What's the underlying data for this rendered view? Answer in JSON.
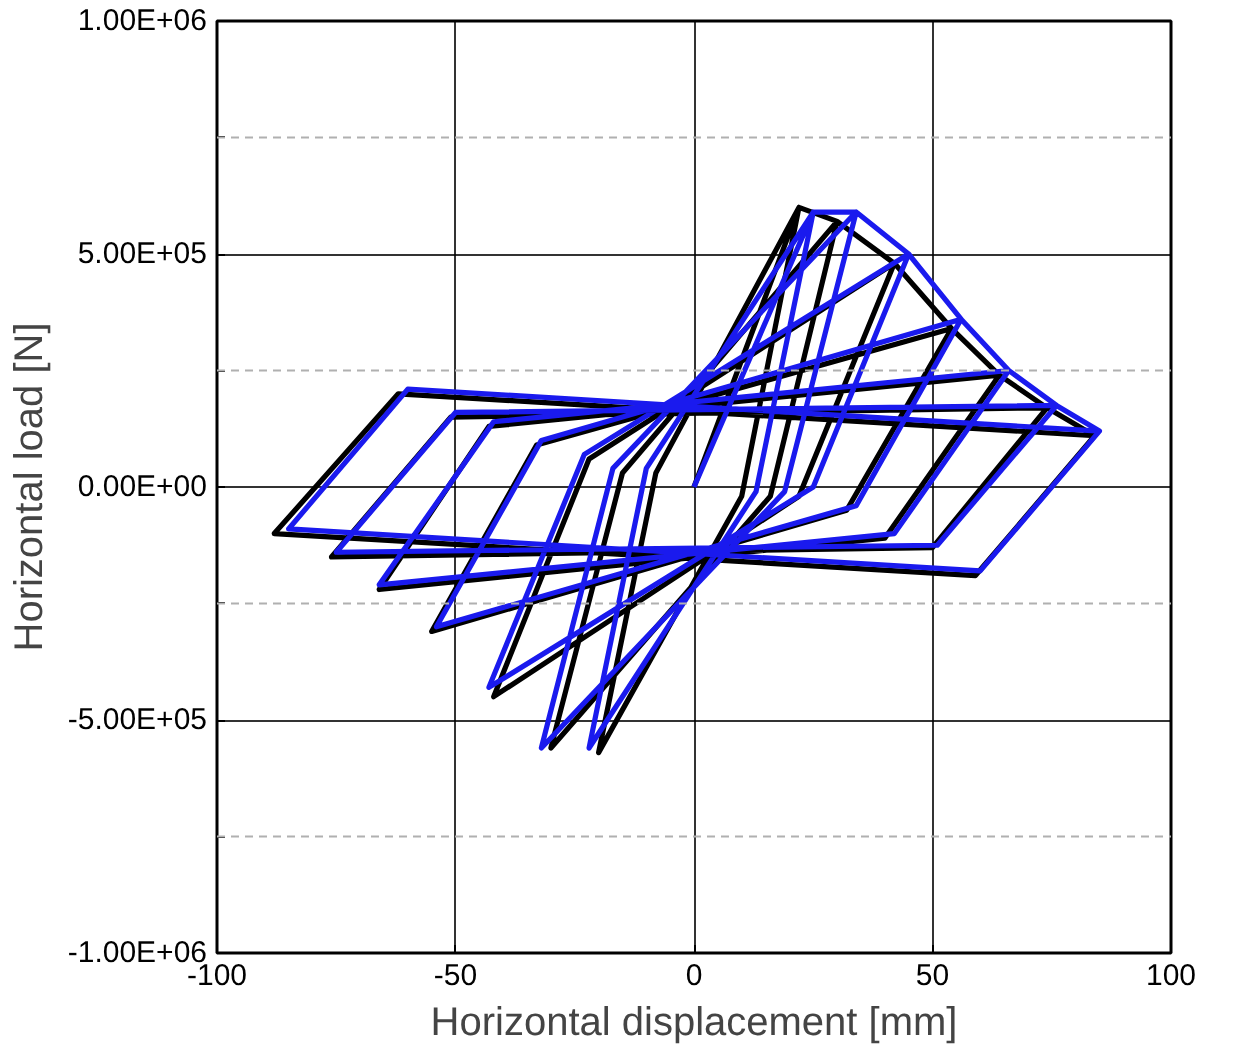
{
  "chart_data": {
    "type": "line",
    "xlabel": "Horizontal displacement [mm]",
    "ylabel": "Horizontal load [N]",
    "xlim": [
      -100,
      100
    ],
    "xticks": [
      -100,
      -50,
      0,
      50,
      100
    ],
    "ylim": [
      -1000000,
      1000000
    ],
    "yticks": [
      {
        "value": -1000000,
        "label": "-1.00E+06"
      },
      {
        "value": -750000,
        "label": null
      },
      {
        "value": -500000,
        "label": "-5.00E+05"
      },
      {
        "value": -250000,
        "label": null
      },
      {
        "value": 0,
        "label": "0.00E+00"
      },
      {
        "value": 250000,
        "label": null
      },
      {
        "value": 500000,
        "label": "5.00E+05"
      },
      {
        "value": 750000,
        "label": null
      },
      {
        "value": 1000000,
        "label": "1.00E+06"
      }
    ],
    "grid": true,
    "marker": "none",
    "line_style": "solid",
    "series": [
      {
        "color": "#000000",
        "x": [
          0,
          22,
          10,
          -20,
          -8,
          22,
          30,
          16,
          -30,
          -15,
          30,
          42,
          22,
          -42,
          -22,
          42,
          54,
          32,
          -55,
          -33,
          54,
          64,
          40,
          -66,
          -43,
          64,
          74,
          50,
          -76,
          -51,
          74,
          84,
          59,
          -88,
          -62,
          84
        ],
        "values": [
          0,
          600000,
          -20000,
          -570000,
          30000,
          600000,
          570000,
          -20000,
          -560000,
          30000,
          570000,
          480000,
          -20000,
          -450000,
          60000,
          480000,
          340000,
          -50000,
          -310000,
          90000,
          340000,
          240000,
          -110000,
          -220000,
          130000,
          240000,
          170000,
          -130000,
          -150000,
          150000,
          170000,
          110000,
          -190000,
          -100000,
          200000,
          110000
        ]
      },
      {
        "color": "#1a1aee",
        "x": [
          0,
          25,
          13,
          -22,
          -10,
          25,
          34,
          19,
          -32,
          -17,
          34,
          45,
          25,
          -43,
          -23,
          45,
          56,
          34,
          -54,
          -32,
          56,
          66,
          42,
          -66,
          -42,
          66,
          76,
          51,
          -75,
          -50,
          76,
          85,
          60,
          -85,
          -60,
          85
        ],
        "values": [
          0,
          590000,
          -10000,
          -560000,
          40000,
          590000,
          590000,
          -10000,
          -560000,
          40000,
          590000,
          500000,
          0,
          -430000,
          70000,
          500000,
          360000,
          -40000,
          -300000,
          100000,
          360000,
          250000,
          -100000,
          -210000,
          140000,
          250000,
          175000,
          -125000,
          -140000,
          160000,
          175000,
          120000,
          -180000,
          -90000,
          210000,
          120000
        ]
      }
    ]
  }
}
